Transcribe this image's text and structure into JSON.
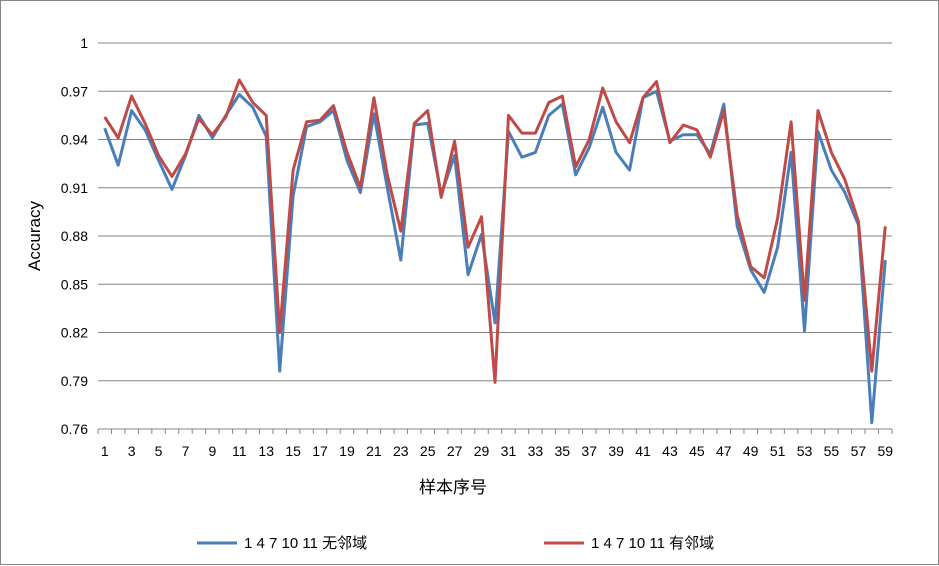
{
  "chart_data": {
    "type": "line",
    "title": "",
    "xlabel": "样本序号",
    "ylabel": "Accuracy",
    "ylim": [
      0.76,
      1.0
    ],
    "yticks": [
      "0.76",
      "0.79",
      "0.82",
      "0.85",
      "0.88",
      "0.91",
      "0.94",
      "0.97",
      "1"
    ],
    "xticks": [
      "1",
      "3",
      "5",
      "7",
      "9",
      "11",
      "13",
      "15",
      "17",
      "19",
      "21",
      "23",
      "25",
      "27",
      "29",
      "31",
      "33",
      "35",
      "37",
      "39",
      "41",
      "43",
      "45",
      "47",
      "49",
      "51",
      "53",
      "55",
      "57",
      "59"
    ],
    "grid": "horizontal",
    "legend_position": "bottom",
    "x": [
      1,
      2,
      3,
      4,
      5,
      6,
      7,
      8,
      9,
      10,
      11,
      12,
      13,
      14,
      15,
      16,
      17,
      18,
      19,
      20,
      21,
      22,
      23,
      24,
      25,
      26,
      27,
      28,
      29,
      30,
      31,
      32,
      33,
      34,
      35,
      36,
      37,
      38,
      39,
      40,
      41,
      42,
      43,
      44,
      45,
      46,
      47,
      48,
      49,
      50,
      51,
      52,
      53,
      54,
      55,
      56,
      57,
      58,
      59
    ],
    "series": [
      {
        "name": "1 4 7 10 11 无邻域",
        "color": "#4a7ebb",
        "values": [
          0.947,
          0.924,
          0.958,
          0.946,
          0.927,
          0.909,
          0.93,
          0.955,
          0.941,
          0.955,
          0.968,
          0.96,
          0.942,
          0.796,
          0.905,
          0.948,
          0.951,
          0.958,
          0.927,
          0.907,
          0.956,
          0.91,
          0.865,
          0.949,
          0.95,
          0.906,
          0.93,
          0.856,
          0.881,
          0.826,
          0.945,
          0.929,
          0.932,
          0.955,
          0.962,
          0.918,
          0.935,
          0.96,
          0.932,
          0.921,
          0.966,
          0.97,
          0.939,
          0.943,
          0.943,
          0.931,
          0.962,
          0.886,
          0.859,
          0.845,
          0.873,
          0.932,
          0.821,
          0.945,
          0.921,
          0.907,
          0.887,
          0.764,
          0.865
        ]
      },
      {
        "name": "1 4 7 10 11 有邻域",
        "color": "#be4b48",
        "values": [
          0.954,
          0.941,
          0.967,
          0.95,
          0.93,
          0.917,
          0.931,
          0.953,
          0.943,
          0.954,
          0.977,
          0.963,
          0.955,
          0.82,
          0.921,
          0.951,
          0.952,
          0.961,
          0.932,
          0.91,
          0.966,
          0.918,
          0.883,
          0.95,
          0.958,
          0.904,
          0.939,
          0.873,
          0.892,
          0.789,
          0.955,
          0.944,
          0.944,
          0.963,
          0.967,
          0.923,
          0.94,
          0.972,
          0.951,
          0.938,
          0.966,
          0.976,
          0.938,
          0.949,
          0.946,
          0.929,
          0.958,
          0.893,
          0.861,
          0.854,
          0.891,
          0.951,
          0.84,
          0.958,
          0.932,
          0.915,
          0.889,
          0.796,
          0.886
        ]
      }
    ]
  }
}
